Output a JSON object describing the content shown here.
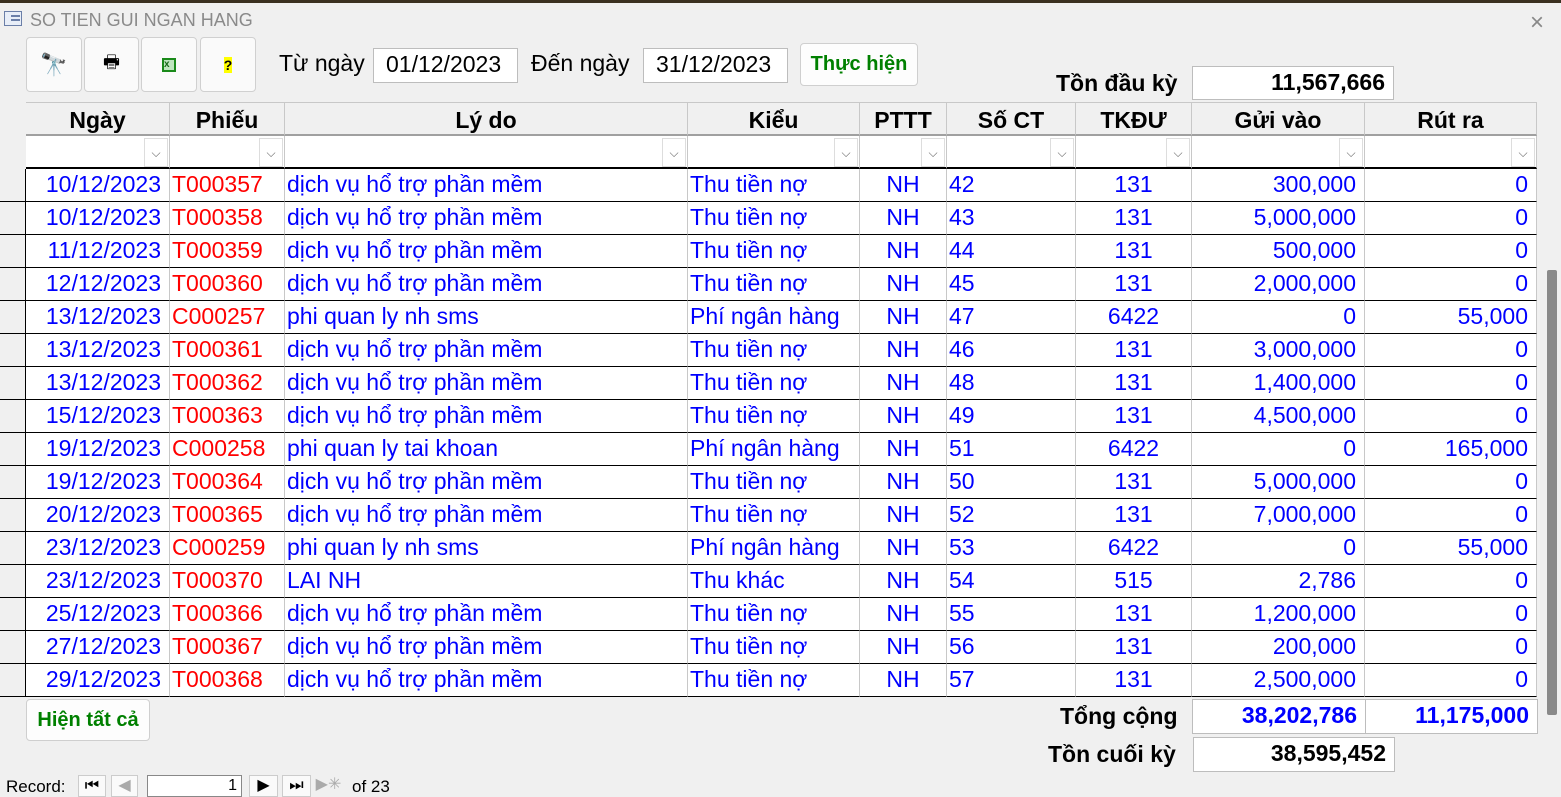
{
  "window": {
    "title": "SO TIEN GUI NGAN HANG",
    "close": "×"
  },
  "toolbar": {
    "find": "find-binoculars-icon",
    "print": "printer-icon",
    "excel": "excel-icon",
    "help": "help-icon"
  },
  "filter": {
    "from_label": "Từ ngày",
    "from_value": "01/12/2023",
    "to_label": "Đến ngày",
    "to_value": "31/12/2023",
    "run_label": "Thực hiện"
  },
  "opening": {
    "label": "Tồn đầu kỳ",
    "value": "11,567,666"
  },
  "columns": [
    "Ngày",
    "Phiếu",
    "Lý do",
    "Kiểu",
    "PTTT",
    "Số CT",
    "TKĐƯ",
    "Gửi vào",
    "Rút ra"
  ],
  "rows": [
    [
      "10/12/2023",
      "T000357",
      "dịch vụ hổ trợ phần mềm",
      "Thu tiền nợ",
      "NH",
      "42",
      "131",
      "300,000",
      "0"
    ],
    [
      "10/12/2023",
      "T000358",
      "dịch vụ hổ trợ phần mềm",
      "Thu tiền nợ",
      "NH",
      "43",
      "131",
      "5,000,000",
      "0"
    ],
    [
      "11/12/2023",
      "T000359",
      "dịch vụ hổ trợ phần mềm",
      "Thu tiền nợ",
      "NH",
      "44",
      "131",
      "500,000",
      "0"
    ],
    [
      "12/12/2023",
      "T000360",
      "dịch vụ hổ trợ phần mềm",
      "Thu tiền nợ",
      "NH",
      "45",
      "131",
      "2,000,000",
      "0"
    ],
    [
      "13/12/2023",
      "C000257",
      "phi quan ly nh sms",
      "Phí ngân hàng",
      "NH",
      "47",
      "6422",
      "0",
      "55,000"
    ],
    [
      "13/12/2023",
      "T000361",
      "dịch vụ hổ trợ phần mềm",
      "Thu tiền nợ",
      "NH",
      "46",
      "131",
      "3,000,000",
      "0"
    ],
    [
      "13/12/2023",
      "T000362",
      "dịch vụ hổ trợ phần mềm",
      "Thu tiền nợ",
      "NH",
      "48",
      "131",
      "1,400,000",
      "0"
    ],
    [
      "15/12/2023",
      "T000363",
      "dịch vụ hổ trợ phần mềm",
      "Thu tiền nợ",
      "NH",
      "49",
      "131",
      "4,500,000",
      "0"
    ],
    [
      "19/12/2023",
      "C000258",
      "phi quan ly tai khoan",
      "Phí ngân hàng",
      "NH",
      "51",
      "6422",
      "0",
      "165,000"
    ],
    [
      "19/12/2023",
      "T000364",
      "dịch vụ hổ trợ phần mềm",
      "Thu tiền nợ",
      "NH",
      "50",
      "131",
      "5,000,000",
      "0"
    ],
    [
      "20/12/2023",
      "T000365",
      "dịch vụ hổ trợ phần mềm",
      "Thu tiền nợ",
      "NH",
      "52",
      "131",
      "7,000,000",
      "0"
    ],
    [
      "23/12/2023",
      "C000259",
      "phi quan ly nh sms",
      "Phí ngân hàng",
      "NH",
      "53",
      "6422",
      "0",
      "55,000"
    ],
    [
      "23/12/2023",
      "T000370",
      "LAI NH",
      "Thu khác",
      "NH",
      "54",
      "515",
      "2,786",
      "0"
    ],
    [
      "25/12/2023",
      "T000366",
      "dịch vụ hổ trợ phần mềm",
      "Thu tiền nợ",
      "NH",
      "55",
      "131",
      "1,200,000",
      "0"
    ],
    [
      "27/12/2023",
      "T000367",
      "dịch vụ hổ trợ phần mềm",
      "Thu tiền nợ",
      "NH",
      "56",
      "131",
      "200,000",
      "0"
    ],
    [
      "29/12/2023",
      "T000368",
      "dịch vụ hổ trợ phần mềm",
      "Thu tiền nợ",
      "NH",
      "57",
      "131",
      "2,500,000",
      "0"
    ]
  ],
  "show_all_label": "Hiện tất cả",
  "totals": {
    "label": "Tổng cộng",
    "deposit": "38,202,786",
    "withdraw": "11,175,000"
  },
  "closing": {
    "label": "Tồn cuối kỳ",
    "value": "38,595,452"
  },
  "record_nav": {
    "label": "Record:",
    "current": "1",
    "of_label": "of 23"
  },
  "colors": {
    "text": "#0000ff",
    "voucher": "#ff0000",
    "button_text": "#008000"
  }
}
